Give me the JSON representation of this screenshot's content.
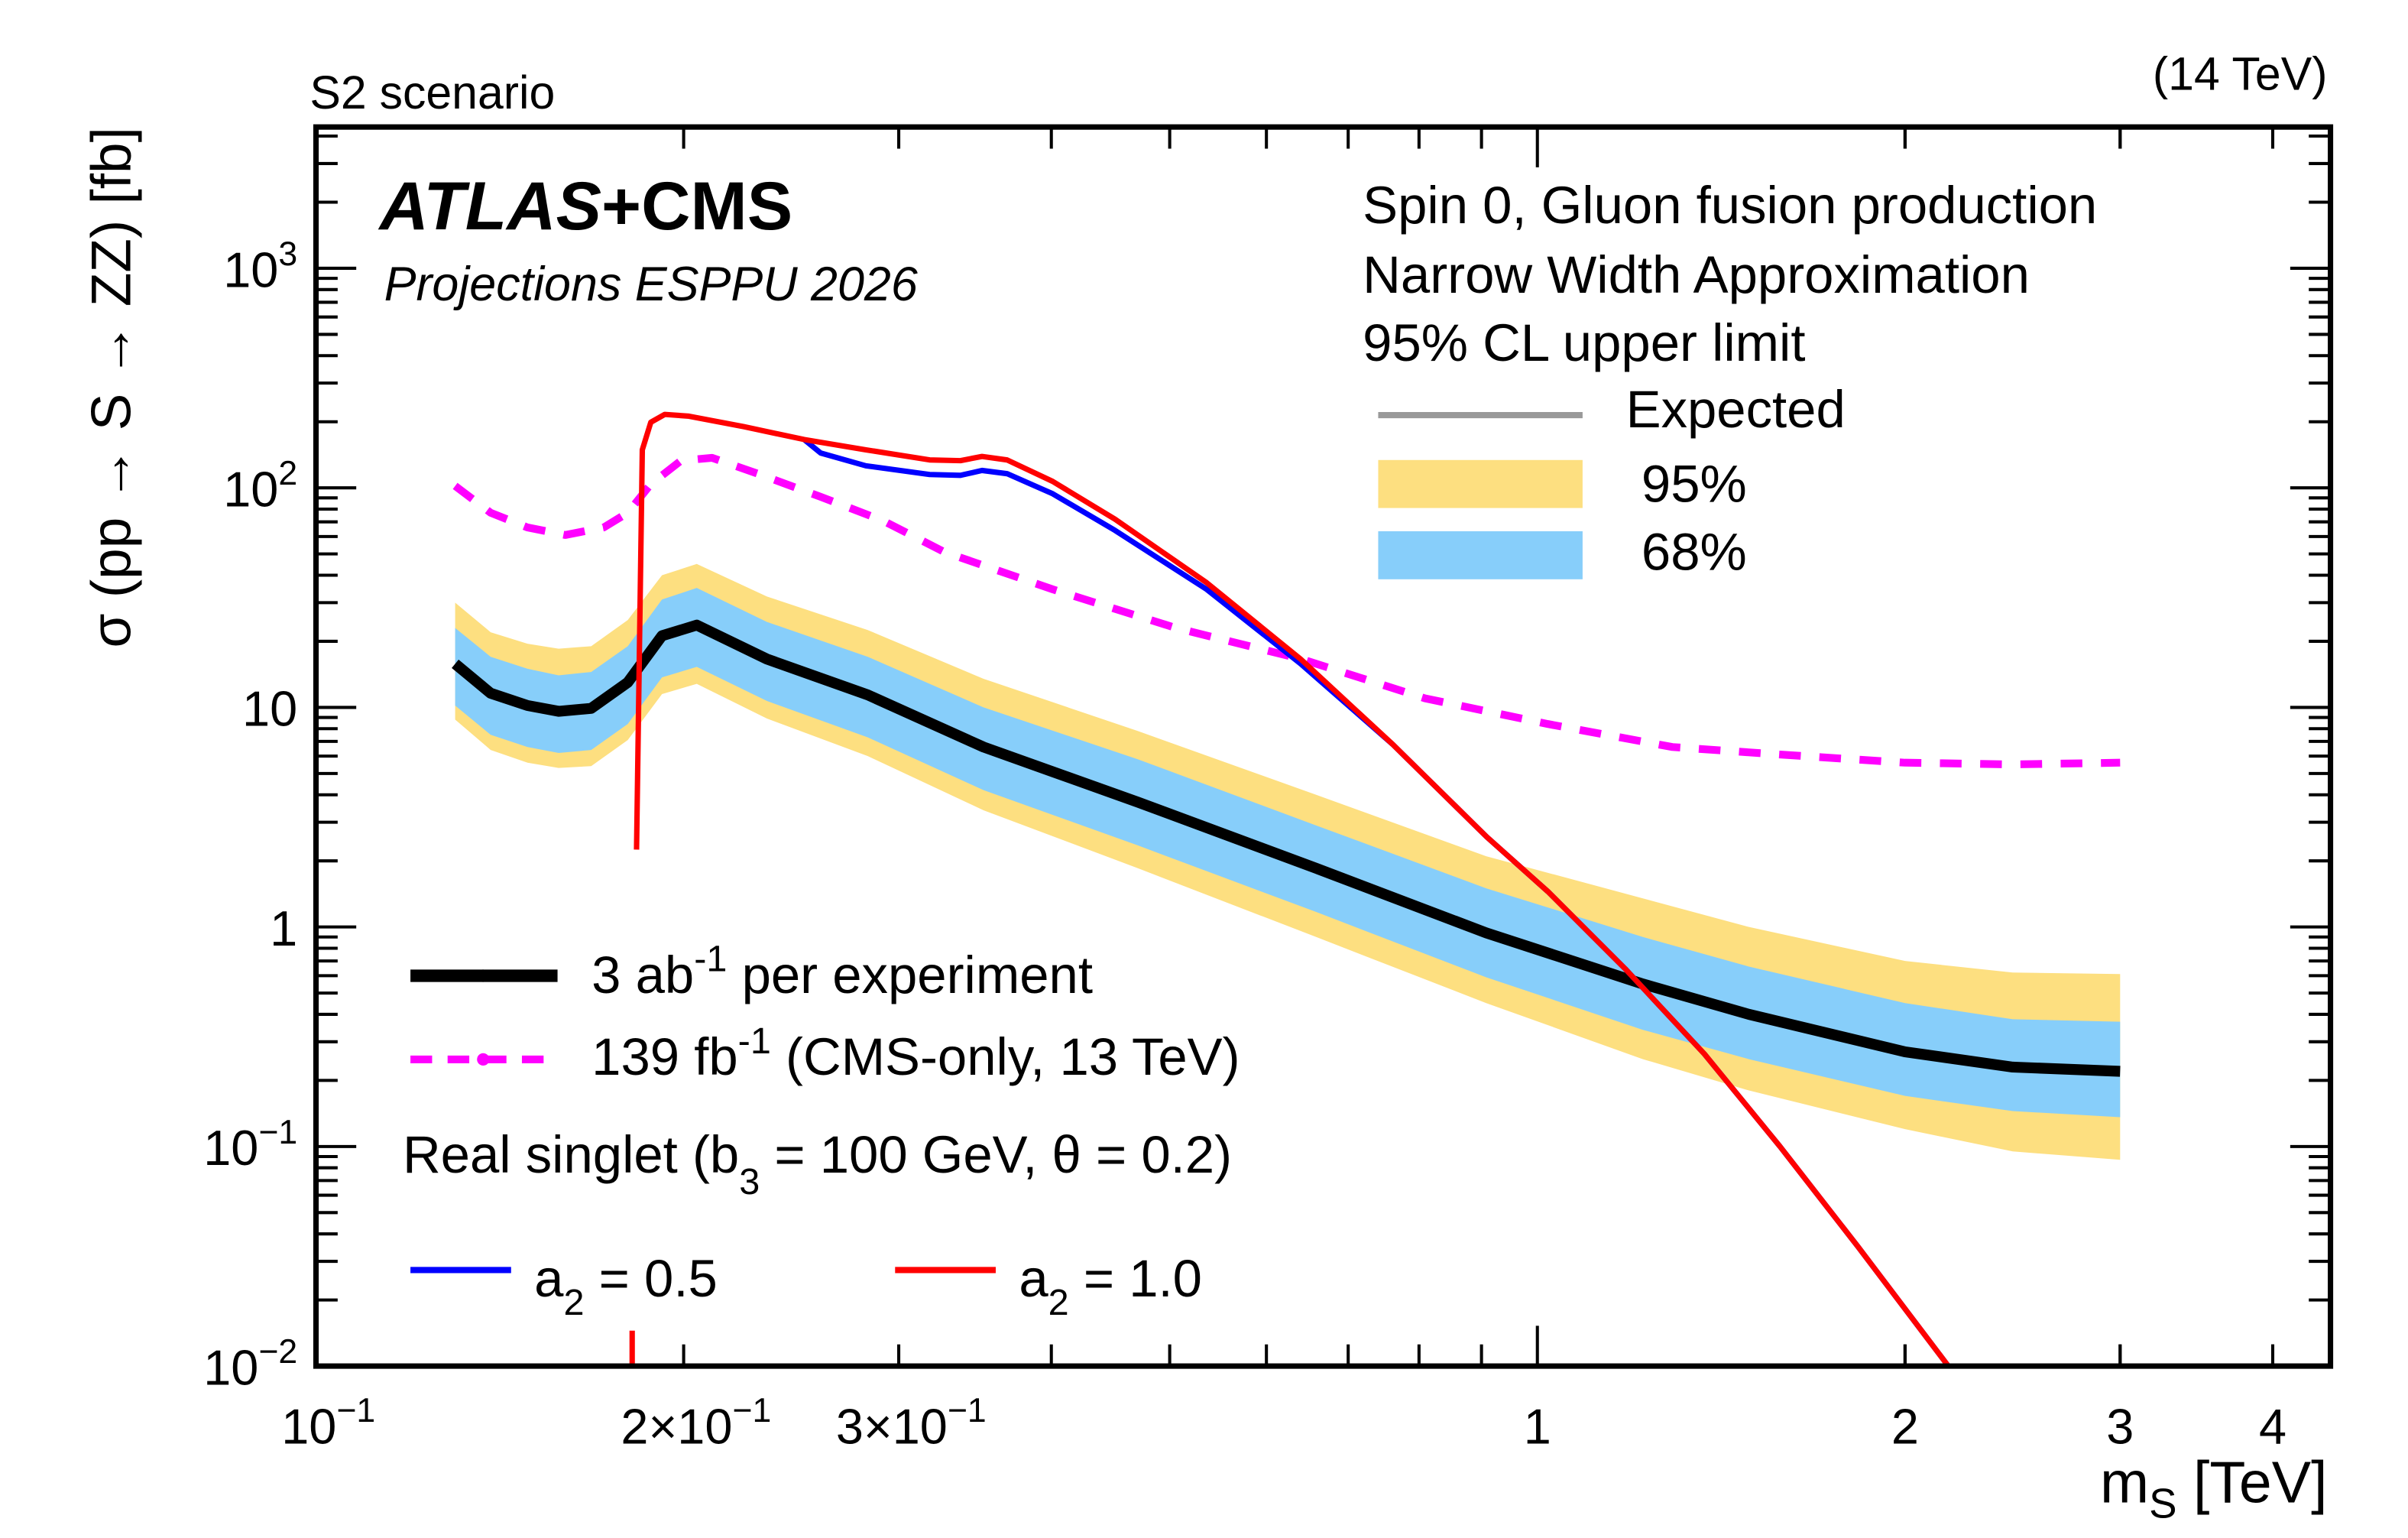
{
  "chart_data": {
    "type": "line",
    "title_left": "S2 scenario",
    "title_right": "(14 TeV)",
    "xlabel": {
      "main": "m",
      "sub": "S",
      "unit": " [TeV]"
    },
    "ylabel": "σ (pp → S → ZZ) [fb]",
    "xscale": "log",
    "yscale": "log",
    "xlim": [
      0.1,
      4.46
    ],
    "ylim": [
      0.01,
      4400
    ],
    "xticks": [
      {
        "v": 0.1,
        "base": "10",
        "exp": "−1"
      },
      {
        "v": 0.2,
        "base": "2×10",
        "exp": "−1"
      },
      {
        "v": 0.3,
        "base": "3×10",
        "exp": "−1"
      },
      {
        "v": 1,
        "base": "1",
        "exp": ""
      },
      {
        "v": 2,
        "base": "2",
        "exp": ""
      },
      {
        "v": 3,
        "base": "3",
        "exp": ""
      },
      {
        "v": 4,
        "base": "4",
        "exp": ""
      }
    ],
    "yticks": [
      {
        "v": 0.01,
        "base": "10",
        "exp": "−2"
      },
      {
        "v": 0.1,
        "base": "10",
        "exp": "−1"
      },
      {
        "v": 1,
        "base": "1",
        "exp": ""
      },
      {
        "v": 10,
        "base": "10",
        "exp": ""
      },
      {
        "v": 100,
        "base": "10",
        "exp": "2"
      },
      {
        "v": 1000,
        "base": "10",
        "exp": "3"
      }
    ],
    "experiment": {
      "bold": "ATLAS",
      "rest": "+CMS",
      "subtitle": "Projections ESPPU 2026"
    },
    "info_lines": [
      "Spin 0, Gluon fusion production",
      "Narrow Width Approximation",
      "95% CL upper limit"
    ],
    "legend_bands": {
      "expected": "Expected",
      "band95": "95%",
      "band68": "68%"
    },
    "legend_lines": {
      "hl": {
        "a": "3 ab",
        "sup": "-1",
        "b": " per experiment"
      },
      "cms": {
        "a": "139 fb",
        "sup": "-1",
        "b": " (CMS-only, 13 TeV)"
      },
      "singlet": {
        "a": "Real singlet (b",
        "sub": "3",
        "b": " = 100 GeV, θ = 0.2)"
      },
      "a05": {
        "a": "a",
        "sub": "2",
        "b": " = 0.5"
      },
      "a10": {
        "a": "a",
        "sub": "2",
        "b": " = 1.0"
      }
    },
    "colors": {
      "band95": "#fddf80",
      "band68": "#87cefa",
      "expected": "#000000",
      "cms": "#ff00ff",
      "a05": "#0000ff",
      "a10": "#ff0000",
      "expected_legend": "#999999"
    },
    "expected": {
      "x": [
        0.13,
        0.139,
        0.149,
        0.158,
        0.168,
        0.18,
        0.192,
        0.205,
        0.234,
        0.283,
        0.352,
        0.471,
        0.659,
        0.908,
        1.22,
        1.49,
        2.0,
        2.45,
        3.0
      ],
      "median": [
        15.8,
        11.6,
        10.2,
        9.6,
        9.9,
        13.0,
        21.2,
        23.7,
        16.6,
        11.4,
        6.6,
        3.7,
        1.85,
        0.94,
        0.55,
        0.4,
        0.27,
        0.23,
        0.22
      ],
      "up68": [
        23,
        17,
        15,
        14,
        14.5,
        19,
        31,
        35,
        24.5,
        17,
        10,
        5.8,
        2.9,
        1.5,
        0.9,
        0.66,
        0.45,
        0.38,
        0.37
      ],
      "dn68": [
        10.2,
        7.5,
        6.6,
        6.2,
        6.4,
        8.4,
        13.7,
        15.3,
        10.7,
        7.3,
        4.2,
        2.35,
        1.17,
        0.59,
        0.34,
        0.25,
        0.17,
        0.145,
        0.136
      ],
      "up95": [
        30,
        22,
        19.5,
        18.5,
        19,
        25,
        40,
        45,
        32,
        22.5,
        13.5,
        7.8,
        4.0,
        2.1,
        1.35,
        1.0,
        0.7,
        0.62,
        0.61
      ],
      "dn95": [
        8.8,
        6.4,
        5.6,
        5.3,
        5.4,
        7.1,
        11.5,
        12.8,
        8.9,
        6.0,
        3.4,
        1.85,
        0.9,
        0.45,
        0.25,
        0.18,
        0.12,
        0.095,
        0.087
      ]
    },
    "cms_13tev": {
      "x": [
        0.13,
        0.139,
        0.149,
        0.16,
        0.172,
        0.18,
        0.188,
        0.199,
        0.211,
        0.23,
        0.259,
        0.291,
        0.327,
        0.401,
        0.506,
        0.641,
        0.809,
        1.02,
        1.29,
        1.58,
        2.0,
        2.45,
        3.0
      ],
      "y": [
        102,
        77,
        66,
        61,
        66,
        77,
        104,
        133,
        137,
        116,
        91,
        71,
        51,
        34.5,
        23,
        16.6,
        11.0,
        8.4,
        6.6,
        6.1,
        5.6,
        5.5,
        5.6
      ]
    },
    "a2_1p0": {
      "x": [
        0.183,
        0.185,
        0.188,
        0.193,
        0.202,
        0.224,
        0.251,
        0.282,
        0.318,
        0.337,
        0.351,
        0.368,
        0.401,
        0.451,
        0.536,
        0.64,
        0.761,
        0.909,
        1.02,
        1.18,
        1.37,
        1.58,
        1.83,
        2.17
      ],
      "y": [
        2.25,
        149,
        199,
        216,
        212,
        190,
        166,
        149,
        134,
        133,
        139,
        134,
        107,
        72,
        37,
        16.6,
        6.8,
        2.57,
        1.45,
        0.645,
        0.264,
        0.1,
        0.035,
        0.01
      ]
    },
    "a2_1p0_low": {
      "x": [
        0.1815,
        0.1815
      ],
      "y": [
        0.0145,
        0.01
      ]
    },
    "a2_0p5": {
      "x": [
        0.251,
        0.259,
        0.282,
        0.318,
        0.337,
        0.351,
        0.368,
        0.401,
        0.451,
        0.536,
        0.64,
        0.761,
        0.909,
        1.02,
        1.18,
        1.37,
        1.58,
        1.83,
        2.17
      ],
      "y": [
        166,
        144,
        126,
        115,
        114,
        120,
        116,
        94,
        64,
        34.5,
        15.8,
        6.8,
        2.57,
        1.45,
        0.645,
        0.264,
        0.1,
        0.035,
        0.01
      ]
    }
  }
}
